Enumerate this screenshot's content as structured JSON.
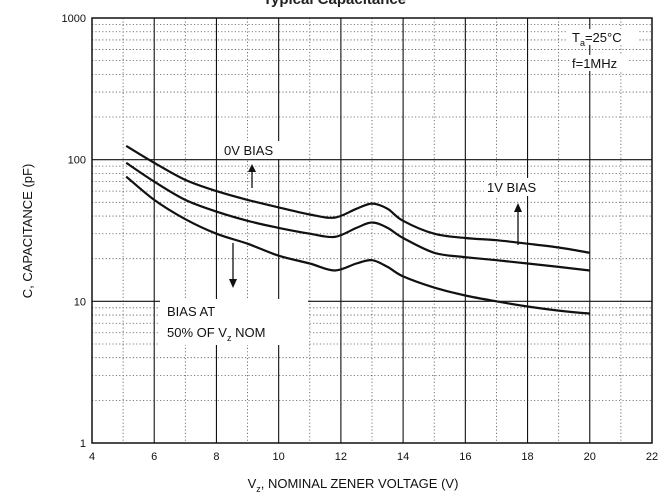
{
  "chart_data": {
    "type": "line",
    "title": "Typical Capacitance",
    "xlabel": {
      "prefix": "V",
      "sub": "z",
      "rest": ", NOMINAL ZENER VOLTAGE (V)"
    },
    "ylabel": "C, CAPACITANCE (pF)",
    "xlim": [
      4,
      22
    ],
    "ylim": [
      1,
      1000
    ],
    "yscale": "log",
    "grid": "major solid, minor dotted",
    "x_ticks": [
      "4",
      "6",
      "8",
      "10",
      "12",
      "14",
      "16",
      "18",
      "20",
      "22"
    ],
    "y_ticks": [
      "1",
      "10",
      "100",
      "1000"
    ],
    "series": [
      {
        "name": "0V BIAS",
        "x": [
          5.1,
          6,
          7,
          8,
          9,
          10,
          11,
          11.8,
          12.5,
          13,
          13.5,
          14,
          15,
          16,
          17,
          18,
          19,
          20
        ],
        "y": [
          125,
          95,
          72,
          60,
          52,
          46,
          41,
          39,
          45,
          49,
          45,
          37,
          30,
          28,
          27,
          25.5,
          24,
          22
        ]
      },
      {
        "name": "1V BIAS",
        "x": [
          5.1,
          6,
          7,
          8,
          9,
          10,
          11,
          11.8,
          12.5,
          13,
          13.5,
          14,
          15,
          16,
          17,
          18,
          19,
          20
        ],
        "y": [
          95,
          70,
          52,
          43,
          37,
          33,
          30,
          28.5,
          33,
          36,
          33,
          28,
          22,
          20.5,
          19.5,
          18.5,
          17.5,
          16.5
        ]
      },
      {
        "name": "BIAS AT 50% OF VZ NOM",
        "x": [
          5.1,
          6,
          7,
          8,
          9,
          10,
          11,
          11.8,
          12.5,
          13,
          13.5,
          14,
          15,
          16,
          17,
          18,
          19,
          20
        ],
        "y": [
          76,
          52,
          38,
          30,
          25.5,
          21,
          18.5,
          16.5,
          18.5,
          19.5,
          17.5,
          15,
          12.5,
          11,
          10,
          9.2,
          8.6,
          8.2
        ]
      }
    ],
    "annotations": {
      "temp": {
        "prefix": "T",
        "sub": "a",
        "rest": "=25°C"
      },
      "freq": "f=1MHz",
      "bias0": "0V BIAS",
      "bias1": "1V BIAS",
      "bias50_line1": "BIAS AT",
      "bias50_line2": {
        "prefix": "50% OF V",
        "sub": "z",
        "rest": " NOM"
      }
    }
  }
}
